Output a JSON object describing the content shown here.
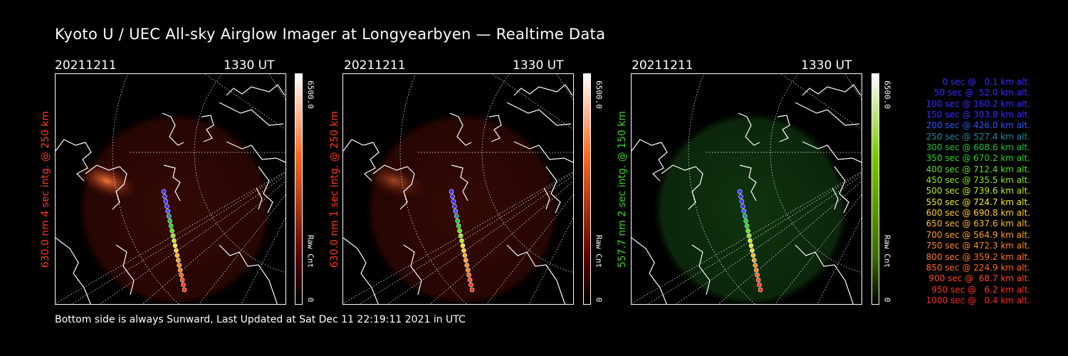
{
  "title": "Kyoto U / UEC All-sky Airglow Imager at Longyearbyen — Realtime Data",
  "footer": "Bottom side is always Sunward, Last Updated at Sat Dec 11 22:19:11 2021 in UTC",
  "panels": [
    {
      "date": "20211211",
      "time": "1330 UT",
      "label": "630.0 nm 4 sec intg. @ 250 km",
      "cbar_max": "6500.0",
      "cbar_min": "0",
      "cbar_unit": "Raw Cnt",
      "color": "#ff3b1f",
      "emission": "red"
    },
    {
      "date": "20211211",
      "time": "1330 UT",
      "label": "630.0 nm 1 sec intg. @ 250 km",
      "cbar_max": "6500.0",
      "cbar_min": "0",
      "cbar_unit": "Raw Cnt",
      "color": "#ff3b1f",
      "emission": "red"
    },
    {
      "date": "20211211",
      "time": "1330 UT",
      "label": "557.7 nm 2 sec intg. @ 150 km",
      "cbar_max": "6500.0",
      "cbar_min": "0",
      "cbar_unit": "Raw Cnt",
      "color": "#3bd11f",
      "emission": "green"
    }
  ],
  "legend": [
    {
      "text": "0 sec @   0.1 km alt.",
      "color": "#3a2cff"
    },
    {
      "text": "50 sec @  52.0 km alt.",
      "color": "#3a2cff"
    },
    {
      "text": "100 sec @ 160.2 km alt.",
      "color": "#3a2cff"
    },
    {
      "text": "150 sec @ 303.8 km alt.",
      "color": "#3a2cff"
    },
    {
      "text": "200 sec @ 426.0 km alt.",
      "color": "#2f56ff"
    },
    {
      "text": "250 sec @ 527.4 km alt.",
      "color": "#1e8aa3"
    },
    {
      "text": "300 sec @ 608.6 km alt.",
      "color": "#1dc63a"
    },
    {
      "text": "350 sec @ 670.2 km alt.",
      "color": "#20d81f"
    },
    {
      "text": "400 sec @ 712.4 km alt.",
      "color": "#5ee01c"
    },
    {
      "text": "450 sec @ 735.5 km alt.",
      "color": "#8ee51c"
    },
    {
      "text": "500 sec @ 739.6 km alt.",
      "color": "#c2ea1c"
    },
    {
      "text": "550 sec @ 724.7 km alt.",
      "color": "#f0f01c"
    },
    {
      "text": "600 sec @ 690.8 km alt.",
      "color": "#ffd21c"
    },
    {
      "text": "650 sec @ 637.6 km alt.",
      "color": "#ffb81c"
    },
    {
      "text": "700 sec @ 564.9 km alt.",
      "color": "#ffa01c"
    },
    {
      "text": "750 sec @ 472.3 km alt.",
      "color": "#ff8a1c"
    },
    {
      "text": "800 sec @ 359.2 km alt.",
      "color": "#ff7a1c"
    },
    {
      "text": "850 sec @ 224.9 km alt.",
      "color": "#ff661c"
    },
    {
      "text": "900 sec @  68.7 km alt.",
      "color": "#ff4a1c"
    },
    {
      "text": "950 sec @   6.2 km alt.",
      "color": "#ff341c"
    },
    {
      "text": "1000 sec @   0.4 km alt.",
      "color": "#ff2a1c"
    }
  ]
}
